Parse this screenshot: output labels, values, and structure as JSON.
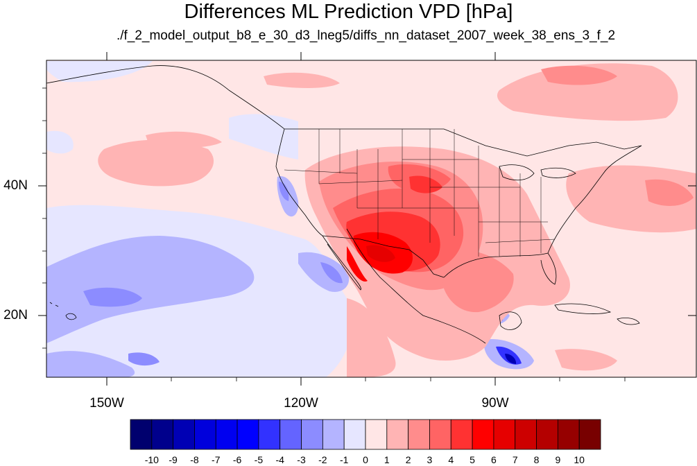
{
  "title": "Differences ML Prediction VPD [hPa]",
  "subtitle": "./f_2_model_output_b8_e_30_d3_lneg5/diffs_nn_dataset_2007_week_38_ens_3_f_2",
  "map": {
    "projection": "cylindrical equidistant",
    "lon_range": [
      -159,
      -59
    ],
    "lat_range": [
      11,
      59
    ],
    "lon_ticks": [
      {
        "value": -150,
        "label": "150W"
      },
      {
        "value": -120,
        "label": "120W"
      },
      {
        "value": -90,
        "label": "90W"
      }
    ],
    "lat_ticks": [
      {
        "value": 40,
        "label": "40N"
      },
      {
        "value": 20,
        "label": "20N"
      }
    ]
  },
  "colorbar": {
    "labels": [
      "-10",
      "-9",
      "-8",
      "-7",
      "-6",
      "-5",
      "-4",
      "-3",
      "-2",
      "-1",
      "0",
      "1",
      "2",
      "3",
      "4",
      "5",
      "6",
      "7",
      "8",
      "9",
      "10"
    ],
    "colors": [
      "#00006e",
      "#00008c",
      "#0000b4",
      "#0000dc",
      "#0000f0",
      "#0000ff",
      "#3232ff",
      "#6464ff",
      "#8c8cff",
      "#b4b4ff",
      "#e6e6ff",
      "#ffe6e6",
      "#ffb4b4",
      "#ff8c8c",
      "#ff6464",
      "#ff3232",
      "#ff0000",
      "#e60000",
      "#cd0000",
      "#b40000",
      "#960000",
      "#780000"
    ]
  }
}
